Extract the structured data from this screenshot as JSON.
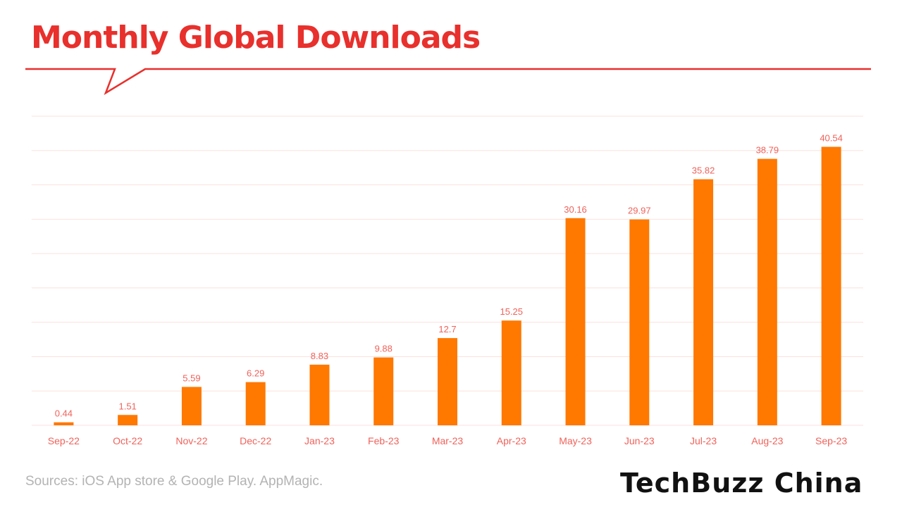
{
  "header": {
    "title": "Monthly Global Downloads"
  },
  "footer": {
    "source": "Sources: iOS App store & Google Play. AppMagic.",
    "logo_text": "TechBuzz China"
  },
  "colors": {
    "bar": "#ff7800",
    "label": "#f0625a",
    "grid": "#fbe1dd",
    "title": "#e8302c"
  },
  "chart_data": {
    "type": "bar",
    "title": "Monthly Global Downloads",
    "categories": [
      "Sep-22",
      "Oct-22",
      "Nov-22",
      "Dec-22",
      "Jan-23",
      "Feb-23",
      "Mar-23",
      "Apr-23",
      "May-23",
      "Jun-23",
      "Jul-23",
      "Aug-23",
      "Sep-23"
    ],
    "values": [
      0.44,
      1.51,
      5.59,
      6.29,
      8.83,
      9.88,
      12.7,
      15.25,
      30.16,
      29.97,
      35.82,
      38.79,
      40.54
    ],
    "value_labels": [
      "0.44",
      "1.51",
      "5.59",
      "6.29",
      "8.83",
      "9.88",
      "12.7",
      "15.25",
      "30.16",
      "29.97",
      "35.82",
      "38.79",
      "40.54"
    ],
    "ylim": [
      0,
      45
    ],
    "ytick_step": 5,
    "grid": true,
    "xlabel": "",
    "ylabel": ""
  }
}
